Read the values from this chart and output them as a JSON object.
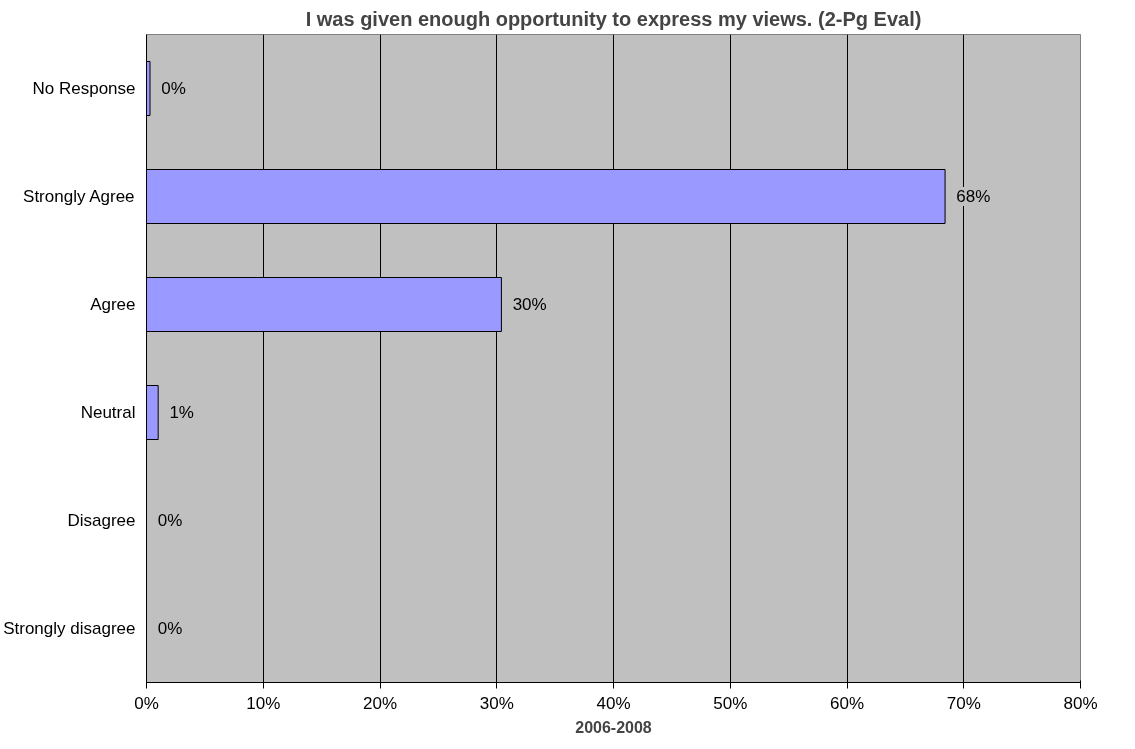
{
  "chart_data": {
    "type": "bar",
    "orientation": "horizontal",
    "title": "I was given enough opportunity to express my views. (2-Pg Eval)",
    "xlabel": "2006-2008",
    "categories": [
      "No Response",
      "Strongly Agree",
      "Agree",
      "Neutral",
      "Disagree",
      "Strongly disagree"
    ],
    "values": [
      0.3,
      68.4,
      30.4,
      1,
      0,
      0
    ],
    "value_labels": [
      "0%",
      "68%",
      "30%",
      "1%",
      "0%",
      "0%"
    ],
    "color": "#9999ff",
    "xlim": [
      0,
      80
    ],
    "xticks": [
      {
        "value": 0,
        "label": "0%"
      },
      {
        "value": 10,
        "label": "10%"
      },
      {
        "value": 20,
        "label": "20%"
      },
      {
        "value": 30,
        "label": "30%"
      },
      {
        "value": 40,
        "label": "40%"
      },
      {
        "value": 50,
        "label": "50%"
      },
      {
        "value": 60,
        "label": "60%"
      },
      {
        "value": 70,
        "label": "70%"
      },
      {
        "value": 80,
        "label": "80%"
      }
    ],
    "grid": "x"
  }
}
